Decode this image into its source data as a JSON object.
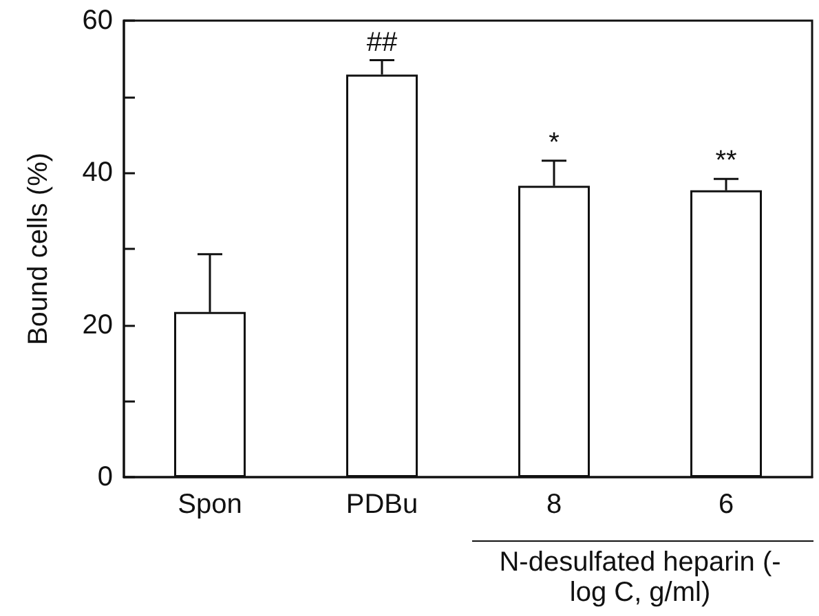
{
  "chart_data": {
    "type": "bar",
    "ylabel": "Bound cells (%)",
    "xlabel": "N-desulfated heparin (-log C, g/ml)",
    "categories": [
      "Spon",
      "PDBu",
      "8",
      "6"
    ],
    "values": [
      21.7,
      52.9,
      38.3,
      37.7
    ],
    "errors": [
      [
        21.7,
        29.3
      ],
      [
        52.9,
        54.8
      ],
      [
        38.3,
        41.6
      ],
      [
        37.7,
        39.2
      ]
    ],
    "color": "#ffffff",
    "ylim": [
      0,
      60
    ],
    "yticks": [
      0,
      {
        "value": 10,
        "label": null
      },
      20,
      {
        "value": 30,
        "label": null
      },
      40,
      {
        "value": 50,
        "label": null
      },
      60
    ],
    "grid": false,
    "annotations": [
      {
        "text": "##",
        "x": "PDBu",
        "y": 54.8
      },
      {
        "text": "*",
        "x": "8",
        "y": 41.6
      },
      {
        "text": "**",
        "x": "6",
        "y": 39.2
      }
    ]
  }
}
